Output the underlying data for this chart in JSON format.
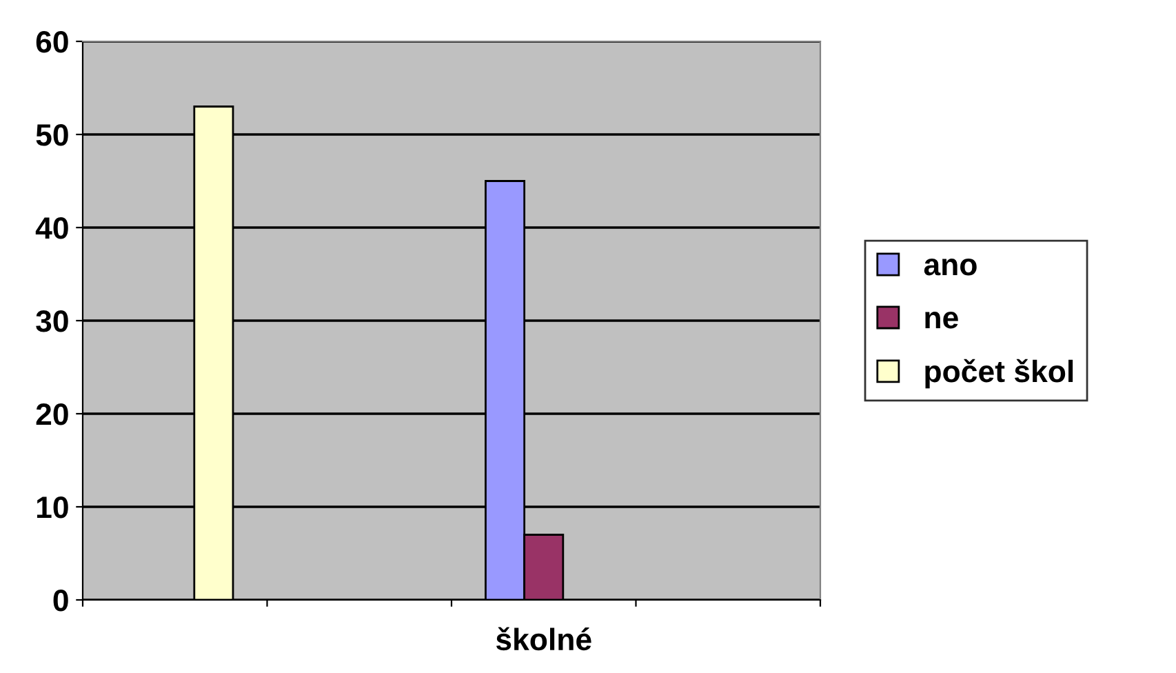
{
  "chart_data": {
    "type": "bar",
    "categories": [
      null,
      null,
      "školné",
      null
    ],
    "series": [
      {
        "name": "ano",
        "color": "#9999ff",
        "values": [
          null,
          null,
          45,
          null
        ]
      },
      {
        "name": "ne",
        "color": "#993366",
        "values": [
          null,
          null,
          7,
          null
        ]
      },
      {
        "name": "počet škol",
        "color": "#ffffcc",
        "values": [
          53,
          null,
          null,
          null
        ]
      }
    ],
    "ylim": [
      0,
      60
    ],
    "yticks": [
      0,
      10,
      20,
      30,
      40,
      50,
      60
    ],
    "grid": "y",
    "legend": "right"
  }
}
